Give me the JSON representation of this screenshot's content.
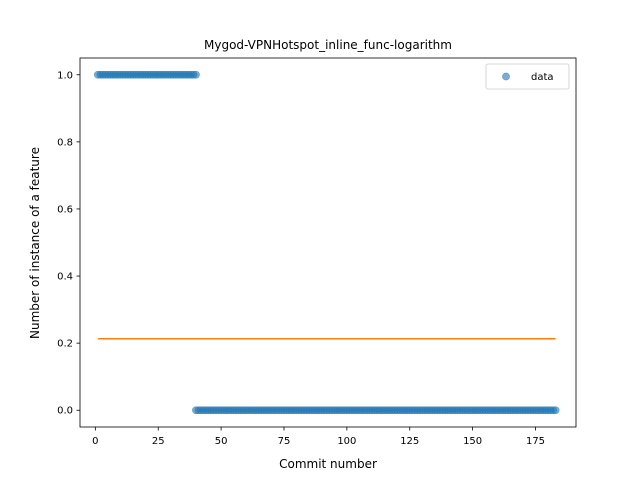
{
  "chart_data": {
    "type": "scatter",
    "title": "Mygod-VPNHotspot_inline_func-logarithm",
    "xlabel": "Commit number",
    "ylabel": "Number of instance of a feature",
    "xlim": [
      -6.1,
      191.1
    ],
    "ylim": [
      -0.05,
      1.05
    ],
    "x_ticks": [
      0,
      25,
      50,
      75,
      100,
      125,
      150,
      175
    ],
    "x_tick_labels": [
      "0",
      "25",
      "50",
      "75",
      "100",
      "125",
      "150",
      "175"
    ],
    "y_ticks": [
      0.0,
      0.2,
      0.4,
      0.6,
      0.8,
      1.0
    ],
    "y_tick_labels": [
      "0.0",
      "0.2",
      "0.4",
      "0.6",
      "0.8",
      "1.0"
    ],
    "grid": false,
    "legend_position": "upper right",
    "series": [
      {
        "name": "data",
        "kind": "scatter",
        "color": "#1f77b4",
        "x_start": 1,
        "x_end": 183,
        "segments": [
          {
            "x_from": 1,
            "x_to": 40,
            "y": 1.0
          },
          {
            "x_from": 40,
            "x_to": 183,
            "y": 0.0
          }
        ]
      },
      {
        "kind": "line",
        "color": "#ff7f0e",
        "points": [
          [
            1,
            0.213
          ],
          [
            183,
            0.213
          ]
        ]
      }
    ]
  }
}
